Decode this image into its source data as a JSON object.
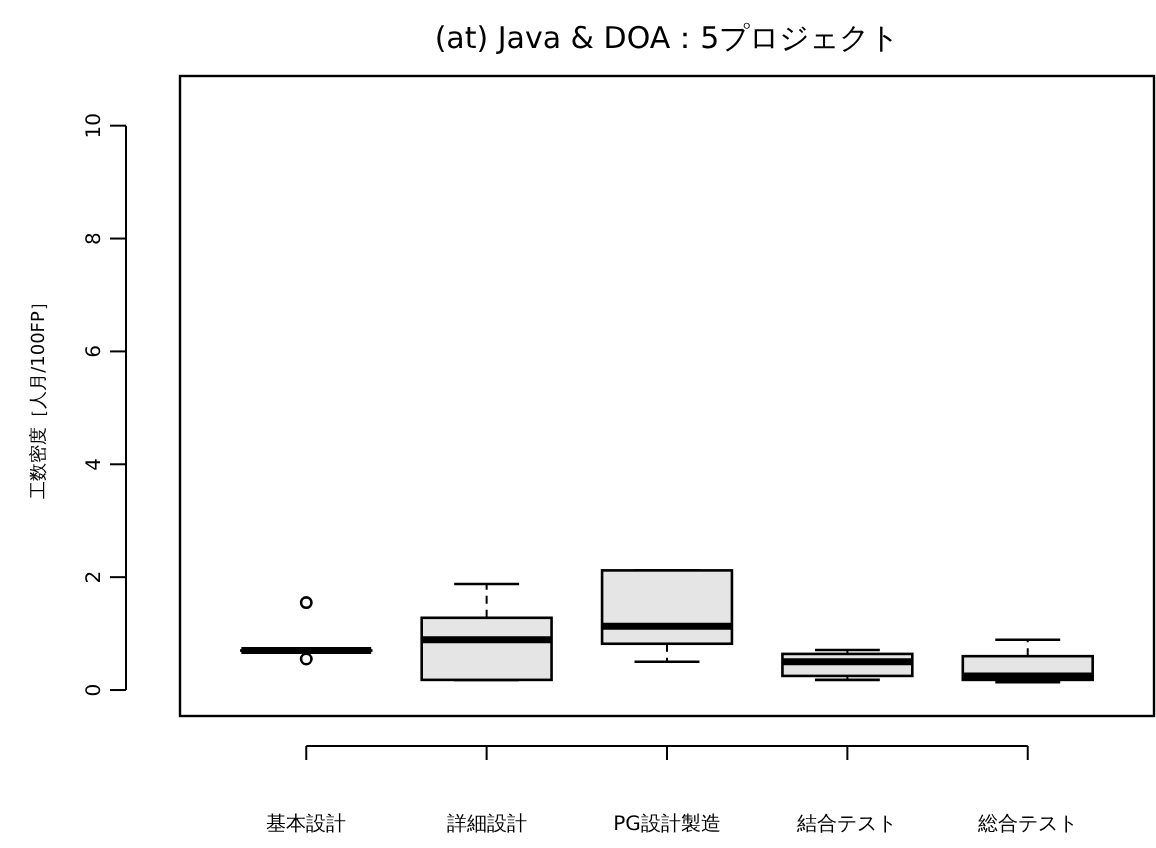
{
  "chart_data": {
    "type": "box",
    "title": "(at) Java & DOA：5プロジェクト",
    "ylabel": "工数密度［人月/100FP］",
    "categories": [
      "基本設計",
      "詳細設計",
      "PG設計製造",
      "結合テスト",
      "総合テスト"
    ],
    "series": [
      {
        "color": "#e5e5e5",
        "boxes": [
          {
            "low": 0.7,
            "q1": 0.7,
            "median": 0.7,
            "q3": 0.7,
            "high": 0.7,
            "outliers": [
              1.55,
              0.55
            ]
          },
          {
            "low": 0.18,
            "q1": 0.18,
            "median": 0.89,
            "q3": 1.28,
            "high": 1.88
          },
          {
            "low": 0.5,
            "q1": 0.82,
            "median": 1.13,
            "q3": 2.12,
            "high": 2.12
          },
          {
            "low": 0.18,
            "q1": 0.25,
            "median": 0.5,
            "q3": 0.64,
            "high": 0.71
          },
          {
            "low": 0.14,
            "q1": 0.18,
            "median": 0.25,
            "q3": 0.6,
            "high": 0.89
          }
        ]
      }
    ],
    "ylim": [
      -0.46,
      10.88
    ],
    "yticks": [
      0,
      2,
      4,
      6,
      8,
      10
    ]
  }
}
